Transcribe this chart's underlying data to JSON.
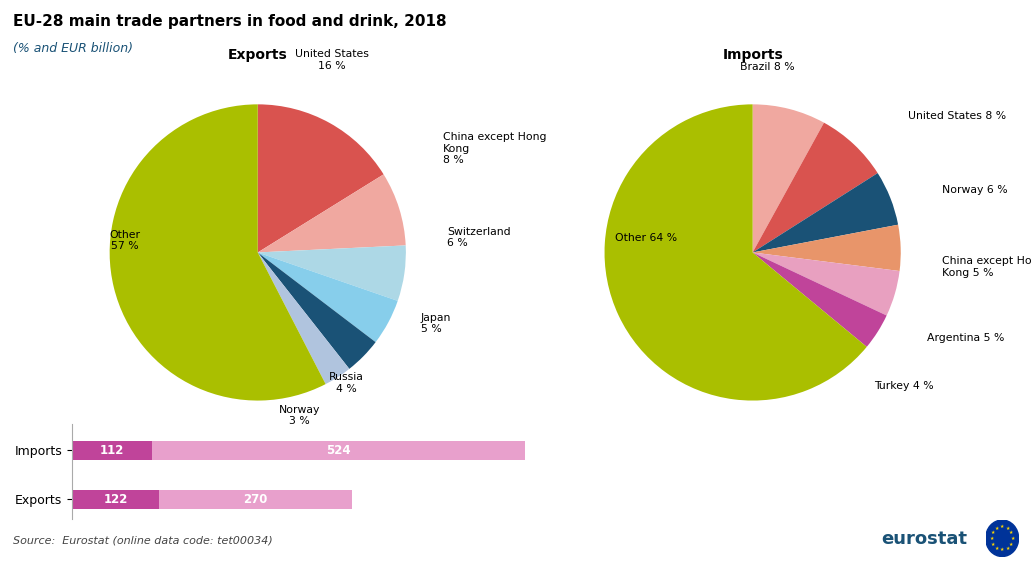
{
  "title": "EU-28 main trade partners in food and drink, 2018",
  "subtitle": "(% and EUR billion)",
  "exports_title": "Exports",
  "imports_title": "Imports",
  "exports_values": [
    16,
    8,
    6,
    5,
    4,
    3,
    57
  ],
  "exports_colors": [
    "#d9534f",
    "#f0a8a0",
    "#add8e6",
    "#87ceeb",
    "#1a5276",
    "#b0c4de",
    "#aabf00"
  ],
  "imports_values": [
    8,
    8,
    6,
    5,
    5,
    4,
    64
  ],
  "imports_colors": [
    "#f0a8a0",
    "#d9534f",
    "#1a5276",
    "#e8956a",
    "#e8a0c0",
    "#c0449a",
    "#aabf00"
  ],
  "bar_categories": [
    "Imports",
    "Exports"
  ],
  "bar_food_drink": [
    112,
    122
  ],
  "bar_other_primary": [
    524,
    270
  ],
  "bar_color_food": "#c0449a",
  "bar_color_other": "#e8a0cc",
  "source_text": "Source:  Eurostat (online data code: tet00034)",
  "background_color": "#ffffff",
  "title_color": "#000000",
  "subtitle_color": "#1a5276"
}
